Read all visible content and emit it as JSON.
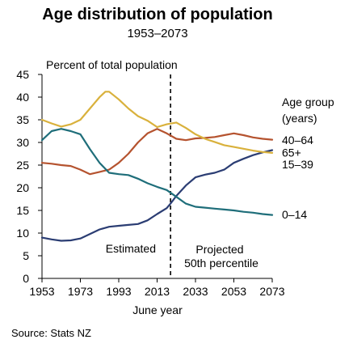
{
  "chart_data": {
    "type": "line",
    "title": "Age distribution of population",
    "subtitle": "1953–2073",
    "ylabel": "Percent of total population",
    "xlabel": "June year",
    "xlim": [
      1953,
      2073
    ],
    "ylim": [
      0,
      45
    ],
    "x_ticks": [
      1953,
      1973,
      1993,
      2013,
      2033,
      2053,
      2073
    ],
    "y_ticks": [
      0,
      5,
      10,
      15,
      20,
      25,
      30,
      35,
      40,
      45
    ],
    "x_tick_labels": [
      "1953",
      "1973",
      "1993",
      "2013",
      "2033",
      "2053",
      "2073"
    ],
    "y_tick_labels": [
      "0",
      "5",
      "10",
      "15",
      "20",
      "25",
      "30",
      "35",
      "40",
      "45"
    ],
    "grid": false,
    "legend_title": "Age group\n(years)",
    "divider": {
      "x": 2020,
      "style": "dashed"
    },
    "annotations": {
      "estimated": "Estimated",
      "projected_line1": "Projected",
      "projected_line2": "50th percentile"
    },
    "source": "Source: Stats NZ",
    "series": [
      {
        "name": "40–64",
        "color": "#b5532f",
        "label_y": 30.5,
        "points": [
          [
            1953,
            25.5
          ],
          [
            1958,
            25.3
          ],
          [
            1963,
            25
          ],
          [
            1968,
            24.8
          ],
          [
            1973,
            24
          ],
          [
            1978,
            23
          ],
          [
            1983,
            23.5
          ],
          [
            1988,
            24
          ],
          [
            1993,
            25.5
          ],
          [
            1998,
            27.5
          ],
          [
            2003,
            30
          ],
          [
            2008,
            32
          ],
          [
            2013,
            33
          ],
          [
            2018,
            32
          ],
          [
            2023,
            30.8
          ],
          [
            2028,
            30.5
          ],
          [
            2033,
            30.9
          ],
          [
            2038,
            31
          ],
          [
            2043,
            31.2
          ],
          [
            2048,
            31.6
          ],
          [
            2053,
            32
          ],
          [
            2058,
            31.6
          ],
          [
            2063,
            31.1
          ],
          [
            2068,
            30.8
          ],
          [
            2073,
            30.6
          ]
        ]
      },
      {
        "name": "65+",
        "color": "#2b3d73",
        "label_y": 27.8,
        "points": [
          [
            1953,
            9
          ],
          [
            1958,
            8.6
          ],
          [
            1963,
            8.3
          ],
          [
            1968,
            8.4
          ],
          [
            1973,
            8.8
          ],
          [
            1978,
            9.8
          ],
          [
            1983,
            10.8
          ],
          [
            1988,
            11.4
          ],
          [
            1993,
            11.6
          ],
          [
            1998,
            11.8
          ],
          [
            2003,
            12
          ],
          [
            2008,
            12.8
          ],
          [
            2013,
            14.2
          ],
          [
            2018,
            15.5
          ],
          [
            2020,
            16.5
          ],
          [
            2023,
            18.2
          ],
          [
            2028,
            20.5
          ],
          [
            2033,
            22.3
          ],
          [
            2038,
            22.9
          ],
          [
            2043,
            23.3
          ],
          [
            2048,
            24
          ],
          [
            2053,
            25.5
          ],
          [
            2058,
            26.4
          ],
          [
            2063,
            27.2
          ],
          [
            2068,
            27.8
          ],
          [
            2073,
            28.3
          ]
        ]
      },
      {
        "name": "15–39",
        "color": "#d9b13c",
        "label_y": 25.2,
        "points": [
          [
            1953,
            35
          ],
          [
            1958,
            34.2
          ],
          [
            1963,
            33.5
          ],
          [
            1968,
            34
          ],
          [
            1973,
            35
          ],
          [
            1978,
            37.5
          ],
          [
            1983,
            40
          ],
          [
            1986,
            41.2
          ],
          [
            1988,
            41.2
          ],
          [
            1993,
            39.5
          ],
          [
            1998,
            37.5
          ],
          [
            2003,
            35.8
          ],
          [
            2008,
            34.8
          ],
          [
            2013,
            33.4
          ],
          [
            2018,
            34
          ],
          [
            2023,
            34.4
          ],
          [
            2028,
            33.2
          ],
          [
            2033,
            31.8
          ],
          [
            2038,
            30.8
          ],
          [
            2043,
            30.1
          ],
          [
            2048,
            29.4
          ],
          [
            2053,
            29
          ],
          [
            2058,
            28.6
          ],
          [
            2063,
            28.2
          ],
          [
            2068,
            27.9
          ],
          [
            2073,
            27.7
          ]
        ]
      },
      {
        "name": "0–14",
        "color": "#1f6e7a",
        "label_y": 14.1,
        "points": [
          [
            1953,
            30.5
          ],
          [
            1958,
            32.5
          ],
          [
            1963,
            33
          ],
          [
            1968,
            32.5
          ],
          [
            1973,
            31.8
          ],
          [
            1978,
            28.5
          ],
          [
            1983,
            25.5
          ],
          [
            1988,
            23.3
          ],
          [
            1993,
            23
          ],
          [
            1998,
            22.8
          ],
          [
            2003,
            22
          ],
          [
            2008,
            21
          ],
          [
            2013,
            20.2
          ],
          [
            2018,
            19.5
          ],
          [
            2023,
            18
          ],
          [
            2028,
            16.5
          ],
          [
            2033,
            15.8
          ],
          [
            2038,
            15.6
          ],
          [
            2043,
            15.4
          ],
          [
            2048,
            15.2
          ],
          [
            2053,
            15
          ],
          [
            2058,
            14.7
          ],
          [
            2063,
            14.5
          ],
          [
            2068,
            14.2
          ],
          [
            2073,
            14
          ]
        ]
      }
    ]
  }
}
